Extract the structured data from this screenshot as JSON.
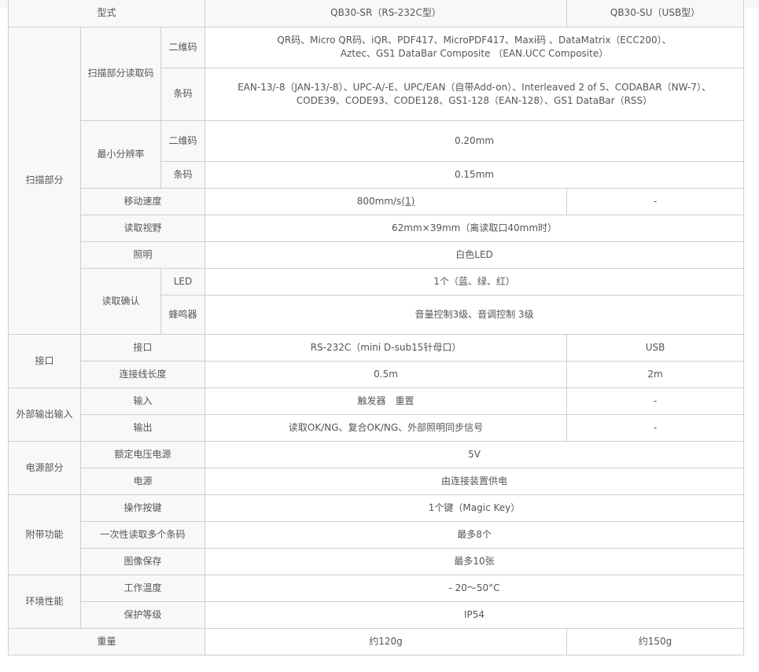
{
  "header": {
    "label": "型式",
    "model_sr": "QB30-SR（RS-232C型）",
    "model_su": "QB30-SU（USB型）"
  },
  "scan": {
    "group": "扫描部分",
    "read_code": {
      "label": "扫描部分读取码",
      "qr_label": "二维码",
      "qr_line1": "QR码、Micro QR码、iQR、PDF417、MicroPDF417、Maxi码 、DataMatrix（ECC200）、",
      "qr_line2": "Aztec、GS1 DataBar Composite （EAN.UCC Composite）",
      "bar_label": "条码",
      "bar_line1": "EAN-13/-8（JAN-13/-8）、UPC-A/-E、UPC/EAN（自带Add-on）、Interleaved 2 of 5、CODABAR（NW-7）、",
      "bar_line2": "CODE39、CODE93、CODE128、GS1-128（EAN-128）、GS1 DataBar（RSS）"
    },
    "resolution": {
      "label": "最小分辨率",
      "qr_label": "二维码",
      "qr_value": "0.20mm",
      "bar_label": "条码",
      "bar_value": "0.15mm"
    },
    "speed": {
      "label": "移动速度",
      "value": "800mm/s",
      "footnote": "(1)",
      "su_value": "-"
    },
    "view": {
      "label": "读取视野",
      "value": "62mm×39mm（离读取口40mm时）"
    },
    "light": {
      "label": "照明",
      "value": "白色LED"
    },
    "confirm": {
      "label": "读取确认",
      "led_label": "LED",
      "led_value": "1个（蓝、绿、红）",
      "buzzer_label": "蜂鸣器",
      "buzzer_value": "音量控制3级、音调控制 3级"
    }
  },
  "interface": {
    "group": "接口",
    "port_label": "接口",
    "port_sr": "RS-232C（mini D-sub15针母口）",
    "port_su": "USB",
    "cable_label": "连接线长度",
    "cable_sr": "0.5m",
    "cable_su": "2m"
  },
  "io": {
    "group": "外部输出输入",
    "input_label": "输入",
    "input_sr": "触发器　重置",
    "input_su": "-",
    "output_label": "输出",
    "output_sr": "读取OK/NG、复合OK/NG、外部照明同步信号",
    "output_su": "-"
  },
  "power": {
    "group": "电源部分",
    "voltage_label": "额定电压电源",
    "voltage_value": "5V",
    "supply_label": "电源",
    "supply_value": "由连接装置供电"
  },
  "extra": {
    "group": "附带功能",
    "key_label": "操作按键",
    "key_value": "1个键（Magic Key）",
    "multi_label": "一次性读取多个条码",
    "multi_value": "最多8个",
    "image_label": "图像保存",
    "image_value": "最多10张"
  },
  "env": {
    "group": "环境性能",
    "temp_label": "工作温度",
    "temp_value": "- 20～50°C",
    "ip_label": "保护等级",
    "ip_value": "IP54"
  },
  "weight": {
    "label": "重量",
    "sr": "约120g",
    "su": "约150g"
  }
}
